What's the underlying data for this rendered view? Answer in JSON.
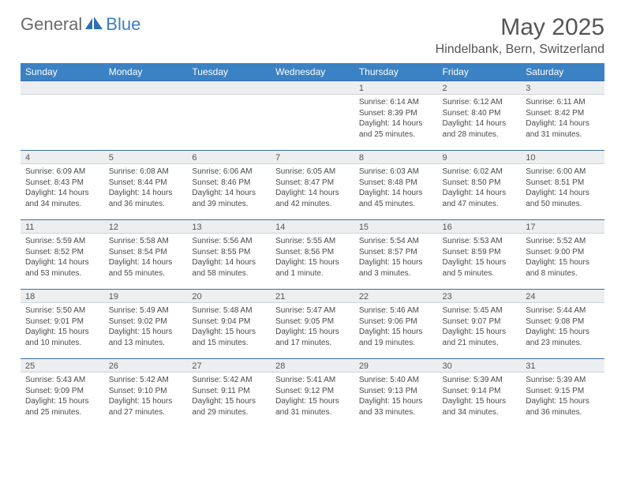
{
  "brand": {
    "name_a": "General",
    "name_b": "Blue"
  },
  "title": "May 2025",
  "location": "Hindelbank, Bern, Switzerland",
  "colors": {
    "header_bg": "#3b82c4",
    "header_text": "#ffffff",
    "row_divider": "#3b6fa0",
    "daynum_bg": "#eceef0",
    "body_text": "#4a4a4a",
    "title_text": "#555555",
    "logo_gray": "#6a6a6a",
    "logo_blue": "#3b7fc4",
    "page_bg": "#ffffff"
  },
  "dayHeaders": [
    "Sunday",
    "Monday",
    "Tuesday",
    "Wednesday",
    "Thursday",
    "Friday",
    "Saturday"
  ],
  "weeks": [
    [
      {
        "n": "",
        "sr": "",
        "ss": "",
        "dl": ""
      },
      {
        "n": "",
        "sr": "",
        "ss": "",
        "dl": ""
      },
      {
        "n": "",
        "sr": "",
        "ss": "",
        "dl": ""
      },
      {
        "n": "",
        "sr": "",
        "ss": "",
        "dl": ""
      },
      {
        "n": "1",
        "sr": "Sunrise: 6:14 AM",
        "ss": "Sunset: 8:39 PM",
        "dl": "Daylight: 14 hours and 25 minutes."
      },
      {
        "n": "2",
        "sr": "Sunrise: 6:12 AM",
        "ss": "Sunset: 8:40 PM",
        "dl": "Daylight: 14 hours and 28 minutes."
      },
      {
        "n": "3",
        "sr": "Sunrise: 6:11 AM",
        "ss": "Sunset: 8:42 PM",
        "dl": "Daylight: 14 hours and 31 minutes."
      }
    ],
    [
      {
        "n": "4",
        "sr": "Sunrise: 6:09 AM",
        "ss": "Sunset: 8:43 PM",
        "dl": "Daylight: 14 hours and 34 minutes."
      },
      {
        "n": "5",
        "sr": "Sunrise: 6:08 AM",
        "ss": "Sunset: 8:44 PM",
        "dl": "Daylight: 14 hours and 36 minutes."
      },
      {
        "n": "6",
        "sr": "Sunrise: 6:06 AM",
        "ss": "Sunset: 8:46 PM",
        "dl": "Daylight: 14 hours and 39 minutes."
      },
      {
        "n": "7",
        "sr": "Sunrise: 6:05 AM",
        "ss": "Sunset: 8:47 PM",
        "dl": "Daylight: 14 hours and 42 minutes."
      },
      {
        "n": "8",
        "sr": "Sunrise: 6:03 AM",
        "ss": "Sunset: 8:48 PM",
        "dl": "Daylight: 14 hours and 45 minutes."
      },
      {
        "n": "9",
        "sr": "Sunrise: 6:02 AM",
        "ss": "Sunset: 8:50 PM",
        "dl": "Daylight: 14 hours and 47 minutes."
      },
      {
        "n": "10",
        "sr": "Sunrise: 6:00 AM",
        "ss": "Sunset: 8:51 PM",
        "dl": "Daylight: 14 hours and 50 minutes."
      }
    ],
    [
      {
        "n": "11",
        "sr": "Sunrise: 5:59 AM",
        "ss": "Sunset: 8:52 PM",
        "dl": "Daylight: 14 hours and 53 minutes."
      },
      {
        "n": "12",
        "sr": "Sunrise: 5:58 AM",
        "ss": "Sunset: 8:54 PM",
        "dl": "Daylight: 14 hours and 55 minutes."
      },
      {
        "n": "13",
        "sr": "Sunrise: 5:56 AM",
        "ss": "Sunset: 8:55 PM",
        "dl": "Daylight: 14 hours and 58 minutes."
      },
      {
        "n": "14",
        "sr": "Sunrise: 5:55 AM",
        "ss": "Sunset: 8:56 PM",
        "dl": "Daylight: 15 hours and 1 minute."
      },
      {
        "n": "15",
        "sr": "Sunrise: 5:54 AM",
        "ss": "Sunset: 8:57 PM",
        "dl": "Daylight: 15 hours and 3 minutes."
      },
      {
        "n": "16",
        "sr": "Sunrise: 5:53 AM",
        "ss": "Sunset: 8:59 PM",
        "dl": "Daylight: 15 hours and 5 minutes."
      },
      {
        "n": "17",
        "sr": "Sunrise: 5:52 AM",
        "ss": "Sunset: 9:00 PM",
        "dl": "Daylight: 15 hours and 8 minutes."
      }
    ],
    [
      {
        "n": "18",
        "sr": "Sunrise: 5:50 AM",
        "ss": "Sunset: 9:01 PM",
        "dl": "Daylight: 15 hours and 10 minutes."
      },
      {
        "n": "19",
        "sr": "Sunrise: 5:49 AM",
        "ss": "Sunset: 9:02 PM",
        "dl": "Daylight: 15 hours and 13 minutes."
      },
      {
        "n": "20",
        "sr": "Sunrise: 5:48 AM",
        "ss": "Sunset: 9:04 PM",
        "dl": "Daylight: 15 hours and 15 minutes."
      },
      {
        "n": "21",
        "sr": "Sunrise: 5:47 AM",
        "ss": "Sunset: 9:05 PM",
        "dl": "Daylight: 15 hours and 17 minutes."
      },
      {
        "n": "22",
        "sr": "Sunrise: 5:46 AM",
        "ss": "Sunset: 9:06 PM",
        "dl": "Daylight: 15 hours and 19 minutes."
      },
      {
        "n": "23",
        "sr": "Sunrise: 5:45 AM",
        "ss": "Sunset: 9:07 PM",
        "dl": "Daylight: 15 hours and 21 minutes."
      },
      {
        "n": "24",
        "sr": "Sunrise: 5:44 AM",
        "ss": "Sunset: 9:08 PM",
        "dl": "Daylight: 15 hours and 23 minutes."
      }
    ],
    [
      {
        "n": "25",
        "sr": "Sunrise: 5:43 AM",
        "ss": "Sunset: 9:09 PM",
        "dl": "Daylight: 15 hours and 25 minutes."
      },
      {
        "n": "26",
        "sr": "Sunrise: 5:42 AM",
        "ss": "Sunset: 9:10 PM",
        "dl": "Daylight: 15 hours and 27 minutes."
      },
      {
        "n": "27",
        "sr": "Sunrise: 5:42 AM",
        "ss": "Sunset: 9:11 PM",
        "dl": "Daylight: 15 hours and 29 minutes."
      },
      {
        "n": "28",
        "sr": "Sunrise: 5:41 AM",
        "ss": "Sunset: 9:12 PM",
        "dl": "Daylight: 15 hours and 31 minutes."
      },
      {
        "n": "29",
        "sr": "Sunrise: 5:40 AM",
        "ss": "Sunset: 9:13 PM",
        "dl": "Daylight: 15 hours and 33 minutes."
      },
      {
        "n": "30",
        "sr": "Sunrise: 5:39 AM",
        "ss": "Sunset: 9:14 PM",
        "dl": "Daylight: 15 hours and 34 minutes."
      },
      {
        "n": "31",
        "sr": "Sunrise: 5:39 AM",
        "ss": "Sunset: 9:15 PM",
        "dl": "Daylight: 15 hours and 36 minutes."
      }
    ]
  ]
}
